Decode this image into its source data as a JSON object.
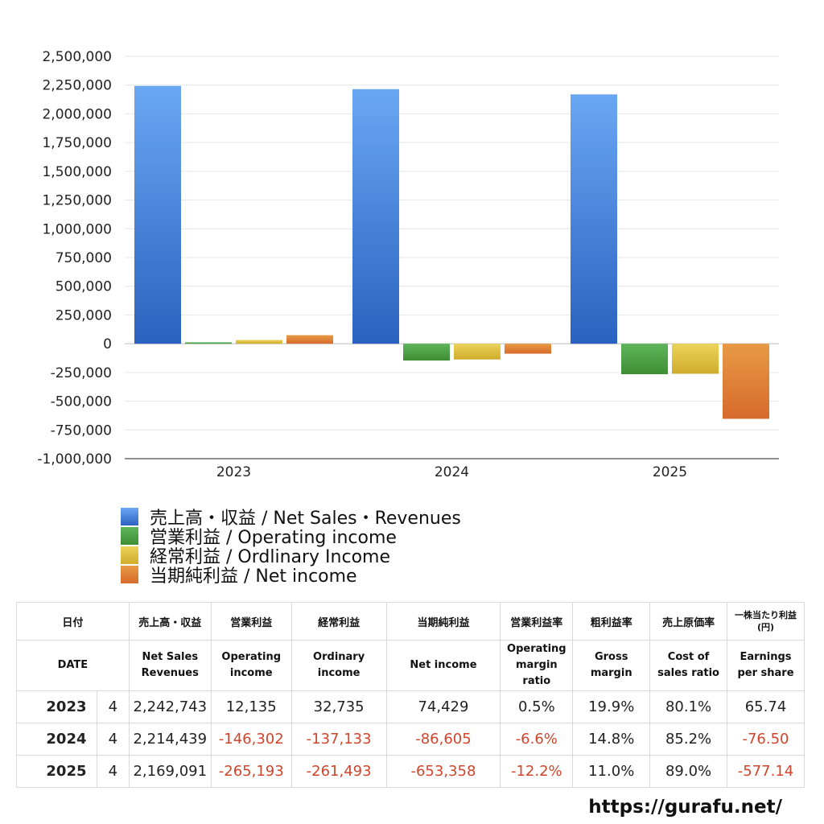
{
  "chart_data": {
    "type": "bar",
    "categories": [
      "2023",
      "2024",
      "2025"
    ],
    "series": [
      {
        "name": "売上高・収益 / Net Sales・Revenues",
        "values": [
          2242743,
          2214439,
          2169091
        ]
      },
      {
        "name": "営業利益 / Operating income",
        "values": [
          12135,
          -146302,
          -265193
        ]
      },
      {
        "name": "経常利益 / Ordlinary Income",
        "values": [
          32735,
          -137133,
          -261493
        ]
      },
      {
        "name": "当期純利益 / Net income",
        "values": [
          74429,
          -86605,
          -653358
        ]
      }
    ],
    "ylim": [
      -1000000,
      2500000
    ],
    "yticks": [
      2500000,
      2250000,
      2000000,
      1750000,
      1500000,
      1250000,
      1000000,
      750000,
      500000,
      250000,
      0,
      -250000,
      -500000,
      -750000,
      -1000000
    ],
    "ytick_labels": [
      "2,500,000",
      "2,250,000",
      "2,000,000",
      "1,750,000",
      "1,500,000",
      "1,250,000",
      "1,000,000",
      "750,000",
      "500,000",
      "250,000",
      "0",
      "-250,000",
      "-500,000",
      "-750,000",
      "-1,000,000"
    ],
    "grid": true,
    "legend_position": "bottom-left"
  },
  "colors": {
    "series_top": [
      "#6aa7f3",
      "#5fb55a",
      "#ebd35a",
      "#e89a45"
    ],
    "series_bottom": [
      "#2b62c0",
      "#3f8d34",
      "#d0ac2b",
      "#d66a2c"
    ],
    "negative_text": "#d0452b"
  },
  "legend": [
    "売上高・収益 / Net Sales・Revenues",
    "営業利益 / Operating income",
    "経常利益 / Ordlinary Income",
    "当期純利益 / Net income"
  ],
  "table": {
    "header_jp": {
      "date": "日付",
      "sales": "売上高・収益",
      "op": "営業利益",
      "ord": "経常利益",
      "net": "当期純利益",
      "opm": "営業利益率",
      "gm": "粗利益率",
      "cost": "売上原価率",
      "eps_line1": "一株当たり利益",
      "eps_line2": "(円)"
    },
    "header_en": {
      "date": "DATE",
      "sales_1": "Net Sales",
      "sales_2": "Revenues",
      "op_1": "Operating",
      "op_2": "income",
      "ord_1": "Ordinary",
      "ord_2": "income",
      "net": "Net income",
      "opm_1": "Operating",
      "opm_2": "margin",
      "opm_3": "ratio",
      "gm_1": "Gross",
      "gm_2": "margin",
      "cost_1": "Cost of",
      "cost_2": "sales ratio",
      "eps_1": "Earnings",
      "eps_2": "per share"
    },
    "rows": [
      {
        "year": "2023",
        "month": "4",
        "sales": "2,242,743",
        "op": "12,135",
        "ord": "32,735",
        "net": "74,429",
        "opm": "0.5%",
        "gm": "19.9%",
        "cost": "80.1%",
        "eps": "65.74"
      },
      {
        "year": "2024",
        "month": "4",
        "sales": "2,214,439",
        "op": "-146,302",
        "ord": "-137,133",
        "net": "-86,605",
        "opm": "-6.6%",
        "gm": "14.8%",
        "cost": "85.2%",
        "eps": "-76.50"
      },
      {
        "year": "2025",
        "month": "4",
        "sales": "2,169,091",
        "op": "-265,193",
        "ord": "-261,493",
        "net": "-653,358",
        "opm": "-12.2%",
        "gm": "11.0%",
        "cost": "89.0%",
        "eps": "-577.14"
      }
    ]
  },
  "footer": {
    "url": "https://gurafu.net/"
  }
}
